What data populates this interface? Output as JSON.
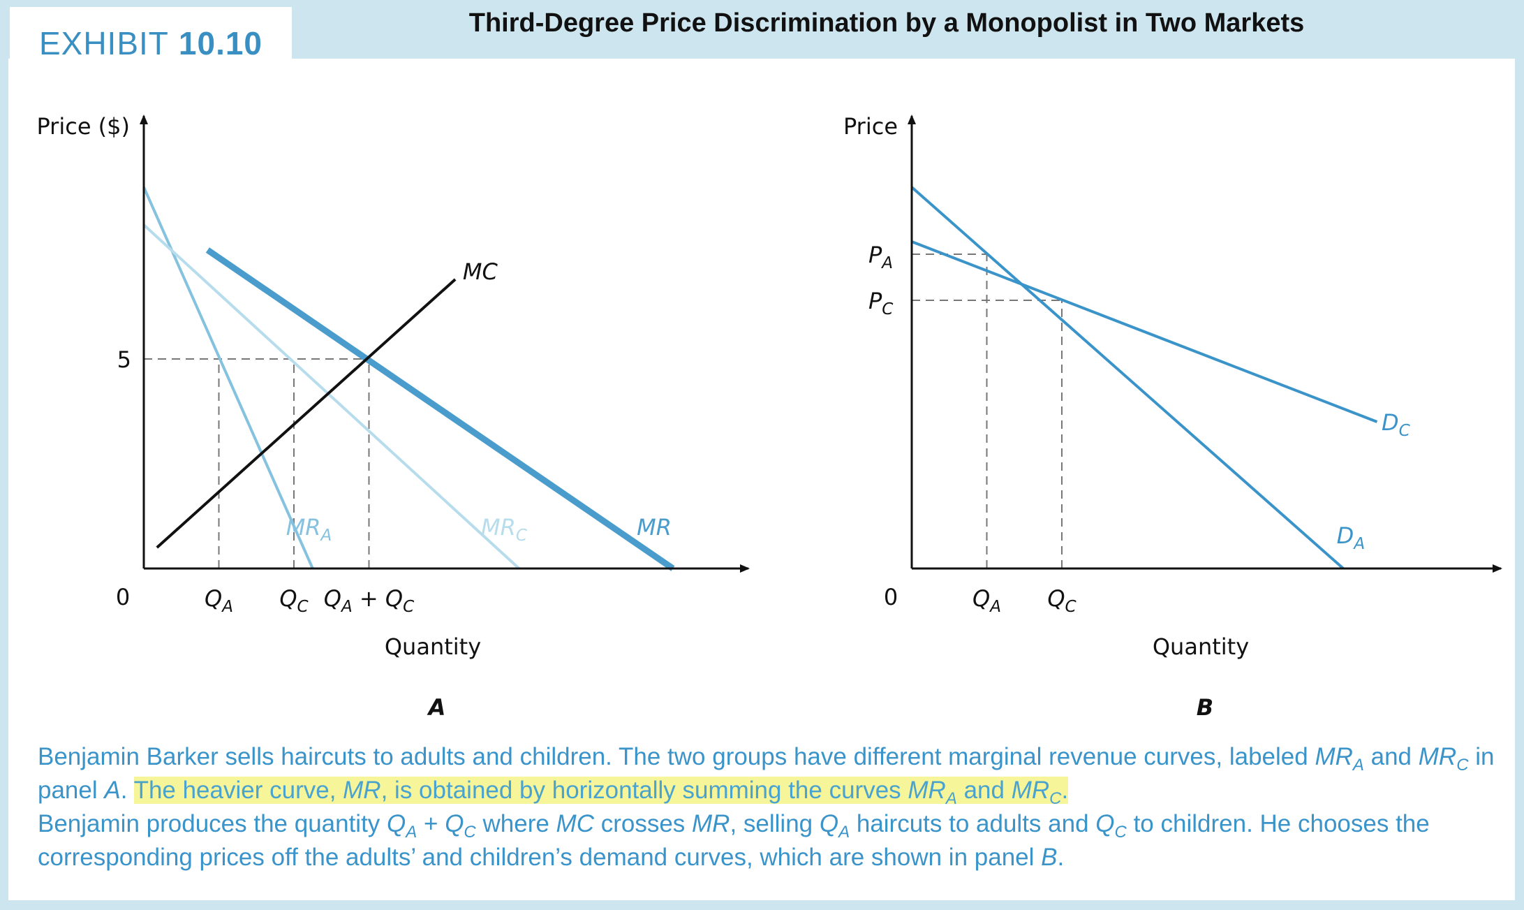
{
  "exhibit": {
    "label": "EXHIBIT",
    "number": "10.10"
  },
  "title": "Third-Degree Price Discrimination by a Monopolist in Two Markets",
  "colors": {
    "accent": "#3a8fc2",
    "mr_line": "#4a9ccc",
    "mra_line": "#84c2e0",
    "mrc_line": "#b7dcec",
    "demand_line": "#3a94c9",
    "mc_line": "#111111",
    "highlight": "#f6f59a",
    "background": "#cde5ef"
  },
  "chart_data": [
    {
      "type": "line",
      "panel_label": "A",
      "ylabel": "Price ($)",
      "xlabel": "Quantity",
      "origin_label": "0",
      "xlim": [
        0,
        16
      ],
      "ylim": [
        0,
        10
      ],
      "yticks": [
        {
          "value": 5,
          "label": "5"
        }
      ],
      "xticks": [
        {
          "value": 2,
          "main": "Q",
          "sub": "A",
          "suffix": ""
        },
        {
          "value": 4,
          "main": "Q",
          "sub": "C",
          "suffix": ""
        },
        {
          "value": 6,
          "main": "Q",
          "sub": "A",
          "suffix": " + Q",
          "sub2": "C"
        }
      ],
      "series": [
        {
          "name": "MR",
          "sub": "A",
          "points": [
            [
              0,
              9.1
            ],
            [
              4.5,
              0
            ]
          ],
          "color": "#84c2e0",
          "width": 4,
          "label_at": [
            4.4,
            0.8
          ]
        },
        {
          "name": "MR",
          "sub": "C",
          "points": [
            [
              0,
              8.2
            ],
            [
              10,
              0
            ]
          ],
          "color": "#b7dcec",
          "width": 4,
          "label_at": [
            9.6,
            0.8
          ]
        },
        {
          "name": "MR",
          "sub": "",
          "points": [
            [
              1.7,
              7.6
            ],
            [
              14.1,
              0
            ]
          ],
          "color": "#4a9ccc",
          "width": 9,
          "label_at": [
            13.6,
            0.8
          ]
        },
        {
          "name": "MC",
          "sub": "",
          "points": [
            [
              0.35,
              0.5
            ],
            [
              8.3,
              6.9
            ]
          ],
          "color": "#111111",
          "width": 4,
          "label_at": [
            8.5,
            6.9
          ]
        }
      ],
      "guides": [
        {
          "from": [
            0,
            5
          ],
          "to": [
            6,
            5
          ]
        },
        {
          "from": [
            2,
            0
          ],
          "to": [
            2,
            5
          ]
        },
        {
          "from": [
            4,
            0
          ],
          "to": [
            4,
            5
          ]
        },
        {
          "from": [
            6,
            0
          ],
          "to": [
            6,
            5
          ]
        }
      ]
    },
    {
      "type": "line",
      "panel_label": "B",
      "ylabel": "Price",
      "xlabel": "Quantity",
      "origin_label": "0",
      "xlim": [
        0,
        16
      ],
      "ylim": [
        0,
        10
      ],
      "yticks": [
        {
          "value": 7.5,
          "main": "P",
          "sub": "A"
        },
        {
          "value": 6.4,
          "main": "P",
          "sub": "C"
        }
      ],
      "xticks": [
        {
          "value": 2,
          "main": "Q",
          "sub": "A"
        },
        {
          "value": 4,
          "main": "Q",
          "sub": "C"
        }
      ],
      "series": [
        {
          "name": "D",
          "sub": "A",
          "points": [
            [
              0,
              9.1
            ],
            [
              11.5,
              0
            ]
          ],
          "color": "#3a94c9",
          "width": 4,
          "label_at": [
            11.7,
            0.6
          ]
        },
        {
          "name": "D",
          "sub": "C",
          "points": [
            [
              0,
              7.8
            ],
            [
              12.4,
              3.5
            ]
          ],
          "color": "#3a94c9",
          "width": 4,
          "label_at": [
            12.9,
            3.3
          ]
        }
      ],
      "guides": [
        {
          "from": [
            0,
            7.5
          ],
          "to": [
            2,
            7.5
          ]
        },
        {
          "from": [
            0,
            6.4
          ],
          "to": [
            4,
            6.4
          ]
        },
        {
          "from": [
            2,
            0
          ],
          "to": [
            2,
            7.5
          ]
        },
        {
          "from": [
            4,
            0
          ],
          "to": [
            4,
            6.4
          ]
        }
      ]
    }
  ],
  "caption": {
    "p1": "Benjamin Barker sells haircuts to adults and children. The two groups have different marginal revenue curves, labeled ",
    "mr": "MR",
    "a": "A",
    "c": "C",
    "and": " and ",
    "in_panel": " in panel ",
    "panel_a": "A",
    "period": ". ",
    "hl1": "The heavier curve, ",
    "hl2": ", is obtained by horizontally summing the curves ",
    "hl_and": " and ",
    "hl_end": ".",
    "p2": "Benjamin produces the quantity ",
    "q": "Q",
    "plus": " + ",
    "where": " where ",
    "mc": "MC",
    "crosses": " crosses ",
    "selling": ", selling ",
    "to_adults": " haircuts to adults and ",
    "to_children": " to children. He chooses the corresponding prices off the adults’ and children’s demand curves, which are shown in panel ",
    "panel_b": "B",
    "end": "."
  }
}
